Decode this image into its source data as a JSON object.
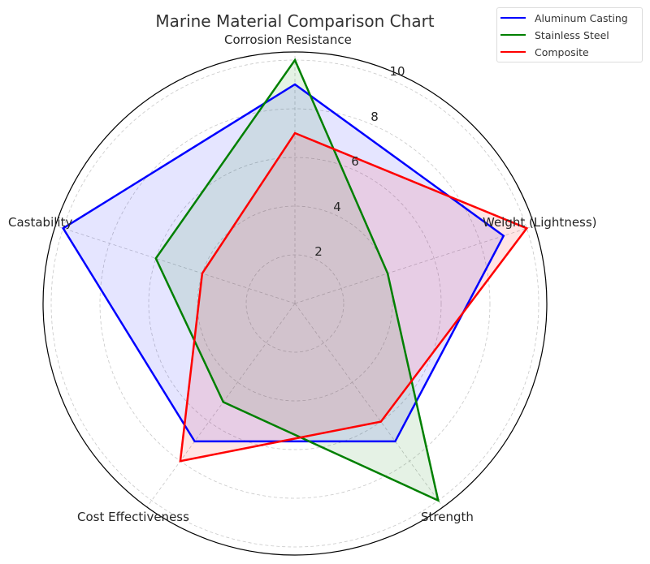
{
  "chart_data": {
    "type": "radar",
    "title": "Marine Material Comparison Chart",
    "categories": [
      "Corrosion Resistance",
      "Weight (Lightness)",
      "Strength",
      "Cost Effectiveness",
      "Castability"
    ],
    "series": [
      {
        "name": "Aluminum Casting",
        "color": "#0000ff",
        "values": [
          9,
          9,
          7,
          7,
          10
        ]
      },
      {
        "name": "Stainless Steel",
        "color": "#008000",
        "values": [
          10,
          4,
          10,
          5,
          6
        ]
      },
      {
        "name": "Composite",
        "color": "#ff0000",
        "values": [
          7,
          10,
          6,
          8,
          4
        ]
      }
    ],
    "radial_ticks": [
      "2",
      "4",
      "6",
      "8",
      "10"
    ],
    "rlim": [
      0,
      10.33
    ],
    "grid": true,
    "legend_position": "upper right",
    "fill_alpha": 0.1
  },
  "legend": {
    "items": [
      {
        "label": "Aluminum Casting",
        "color": "#0000ff"
      },
      {
        "label": "Stainless Steel",
        "color": "#008000"
      },
      {
        "label": "Composite",
        "color": "#ff0000"
      }
    ]
  }
}
